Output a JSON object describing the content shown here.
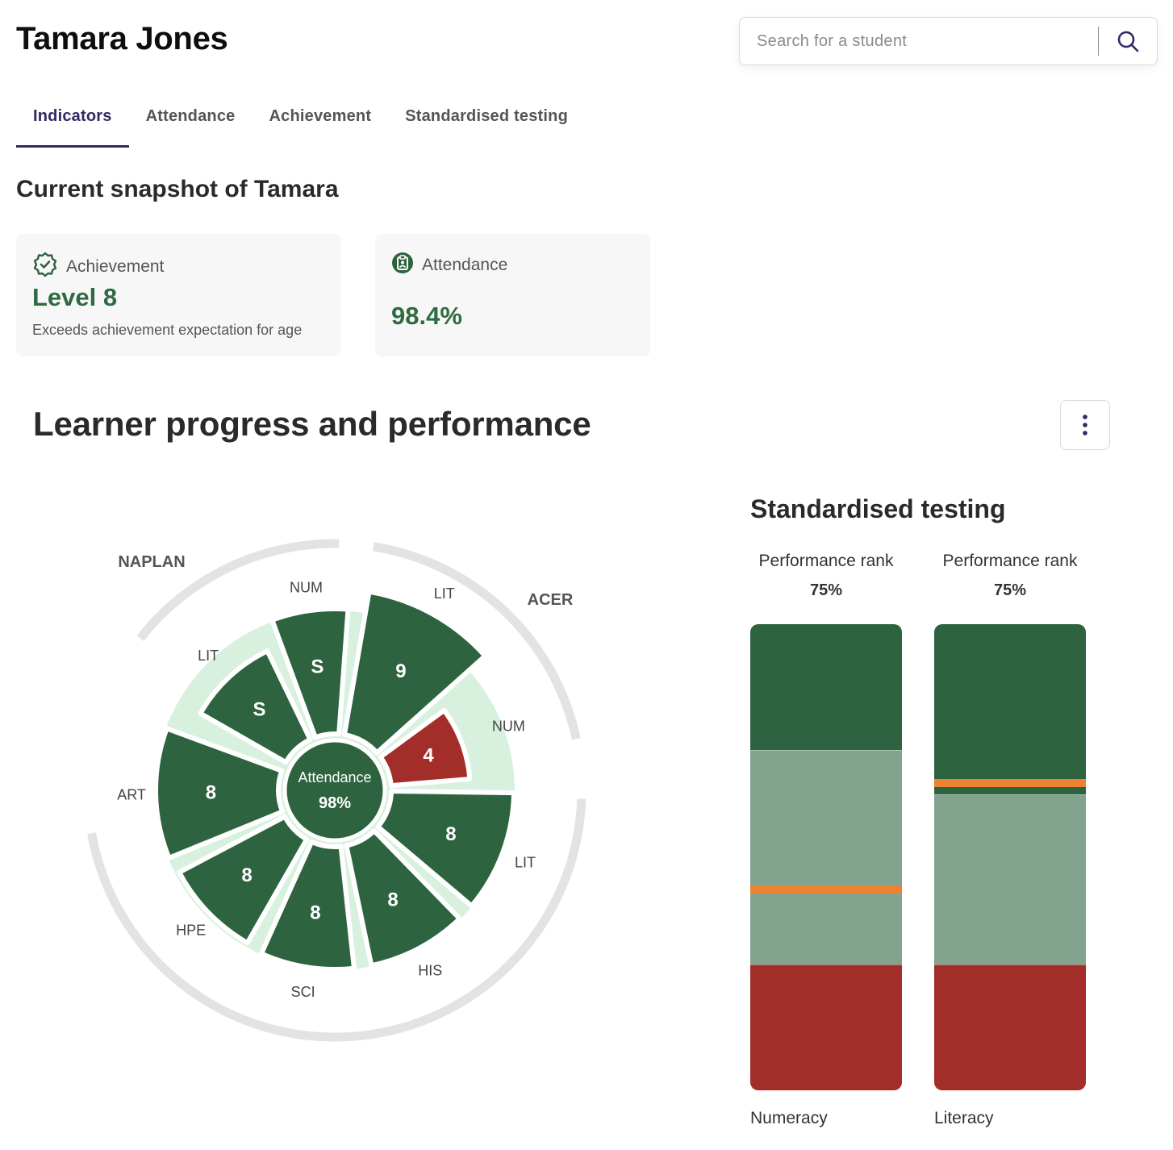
{
  "header": {
    "student_name": "Tamara Jones"
  },
  "search": {
    "placeholder": "Search for a student",
    "icon": "search-icon"
  },
  "tabs": [
    {
      "label": "Indicators",
      "active": true
    },
    {
      "label": "Attendance",
      "active": false
    },
    {
      "label": "Achievement",
      "active": false
    },
    {
      "label": "Standardised testing",
      "active": false
    }
  ],
  "snapshot": {
    "title": "Current snapshot of Tamara",
    "achievement": {
      "label": "Achievement",
      "icon": "badge-check-icon",
      "value": "Level 8",
      "description": "Exceeds achievement expectation for age"
    },
    "attendance": {
      "label": "Attendance",
      "icon": "clipboard-user-icon",
      "value": "98.4%"
    }
  },
  "progress": {
    "title": "Learner progress and performance",
    "menu_icon": "more-vertical-icon"
  },
  "radial": {
    "center": {
      "label": "Attendance",
      "value": "98%"
    },
    "groups": [
      {
        "label": "NAPLAN"
      },
      {
        "label": "ACER"
      }
    ],
    "segments": [
      {
        "subject": "LIT",
        "value": "S",
        "status": "good"
      },
      {
        "subject": "NUM",
        "value": "S",
        "status": "good"
      },
      {
        "subject": "LIT",
        "value": "9",
        "status": "good"
      },
      {
        "subject": "NUM",
        "value": "4",
        "status": "poor"
      },
      {
        "subject": "LIT",
        "value": "8",
        "status": "good"
      },
      {
        "subject": "HIS",
        "value": "8",
        "status": "good"
      },
      {
        "subject": "SCI",
        "value": "8",
        "status": "good"
      },
      {
        "subject": "HPE",
        "value": "8",
        "status": "good"
      },
      {
        "subject": "ART",
        "value": "8",
        "status": "good"
      }
    ],
    "colors": {
      "good": "#2e6340",
      "poor": "#a32d29",
      "track": "#d8f1de",
      "outer_ring": "#e3e3e3"
    }
  },
  "standardised_testing": {
    "title": "Standardised testing",
    "colors": {
      "top": "#2e6340",
      "middle": "#82a38e",
      "bottom": "#a32d29",
      "marker": "#ee8233"
    },
    "columns": [
      {
        "subject": "Numeracy",
        "rank_label": "Performance rank",
        "rank_value": "75%",
        "marker_fraction": 0.57,
        "bands": [
          0.27,
          0.46,
          0.27
        ]
      },
      {
        "subject": "Literacy",
        "rank_label": "Performance rank",
        "rank_value": "75%",
        "marker_fraction": 0.34,
        "bands": [
          0.365,
          0.365,
          0.27
        ]
      }
    ]
  }
}
